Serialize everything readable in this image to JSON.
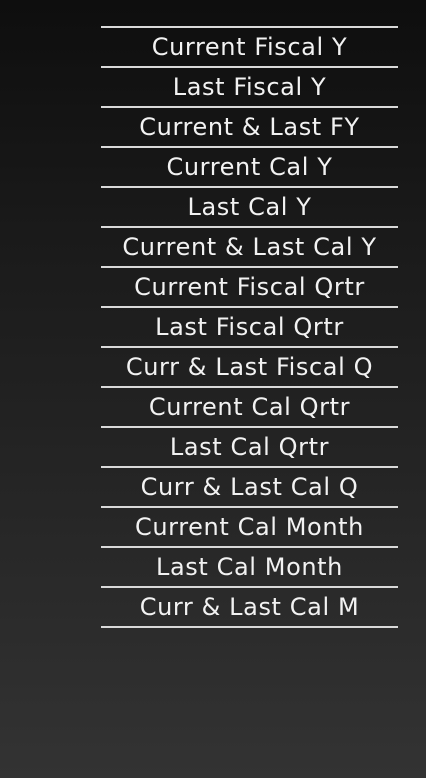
{
  "period_menu": {
    "items": [
      "Current Fiscal Y",
      "Last Fiscal Y",
      "Current & Last FY",
      "Current Cal Y",
      "Last Cal Y",
      "Current & Last Cal Y",
      "Current Fiscal Qrtr",
      "Last Fiscal Qrtr",
      "Curr & Last Fiscal Q",
      "Current Cal Qrtr",
      "Last Cal Qrtr",
      "Curr & Last Cal Q",
      "Current Cal Month",
      "Last Cal Month",
      "Curr & Last Cal M"
    ]
  }
}
